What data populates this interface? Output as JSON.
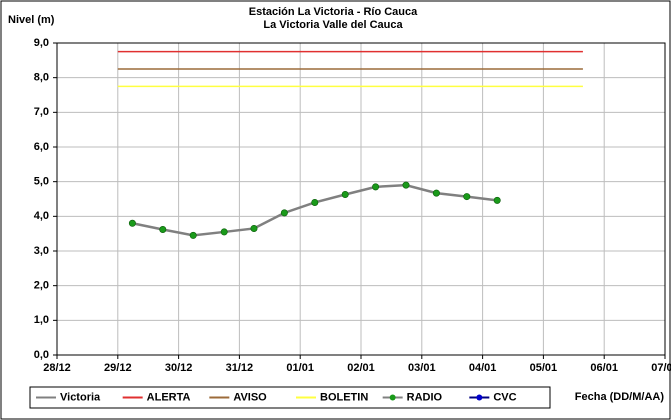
{
  "chart_data": {
    "type": "line",
    "title": "Estación La Victoria - Río Cauca",
    "subtitle": "La Victoria Valle del Cauca",
    "y_label": "Nivel (m)",
    "x_label": "Fecha (DD/M/AA)",
    "xlim": [
      0,
      10
    ],
    "xticks": [
      {
        "value": 0,
        "label": "28/12"
      },
      {
        "value": 1,
        "label": "29/12"
      },
      {
        "value": 2,
        "label": "30/12"
      },
      {
        "value": 3,
        "label": "31/12"
      },
      {
        "value": 4,
        "label": "01/01"
      },
      {
        "value": 5,
        "label": "02/01"
      },
      {
        "value": 6,
        "label": "03/01"
      },
      {
        "value": 7,
        "label": "04/01"
      },
      {
        "value": 8,
        "label": "05/01"
      },
      {
        "value": 9,
        "label": "06/01"
      },
      {
        "value": 10,
        "label": "07/01"
      }
    ],
    "ylim": [
      0,
      9
    ],
    "yticks": [
      {
        "value": 0,
        "label": "0,0"
      },
      {
        "value": 1,
        "label": "1,0"
      },
      {
        "value": 2,
        "label": "2,0"
      },
      {
        "value": 3,
        "label": "3,0"
      },
      {
        "value": 4,
        "label": "4,0"
      },
      {
        "value": 5,
        "label": "5,0"
      },
      {
        "value": 6,
        "label": "6,0"
      },
      {
        "value": 7,
        "label": "7,0"
      },
      {
        "value": 8,
        "label": "8,0"
      },
      {
        "value": 9,
        "label": "9,0"
      }
    ],
    "grid": true,
    "legend": "bottom",
    "series": [
      {
        "name": "Victoria",
        "color": "#808080",
        "markers": false,
        "x": [
          1.24,
          1.74,
          2.24,
          2.75,
          3.24,
          3.74,
          4.24,
          4.74,
          5.24,
          5.74,
          6.24,
          6.74,
          7.24
        ],
        "values": [
          3.8,
          3.62,
          3.45,
          3.55,
          3.65,
          4.1,
          4.4,
          4.63,
          4.85,
          4.9,
          4.67,
          4.57,
          4.46
        ]
      },
      {
        "name": "ALERTA",
        "color": "#e03030",
        "markers": false,
        "x": [
          1,
          8.65
        ],
        "values": [
          8.75,
          8.75
        ]
      },
      {
        "name": "AVISO",
        "color": "#9c6b3a",
        "markers": false,
        "x": [
          1,
          8.65
        ],
        "values": [
          8.25,
          8.25
        ]
      },
      {
        "name": "BOLETIN",
        "color": "#ffff40",
        "markers": false,
        "x": [
          1,
          8.65
        ],
        "values": [
          7.75,
          7.75
        ]
      },
      {
        "name": "RADIO",
        "color": "#1a9a1a",
        "markers": true,
        "x": [
          1.24,
          1.74,
          2.24,
          2.75,
          3.24,
          3.74,
          4.24,
          4.74,
          5.24,
          5.74,
          6.24,
          6.74,
          7.24
        ],
        "values": [
          3.8,
          3.62,
          3.45,
          3.55,
          3.65,
          4.1,
          4.4,
          4.63,
          4.85,
          4.9,
          4.67,
          4.57,
          4.46
        ]
      },
      {
        "name": "CVC",
        "color": "#0000cc",
        "markers": true,
        "x": [],
        "values": []
      }
    ]
  }
}
